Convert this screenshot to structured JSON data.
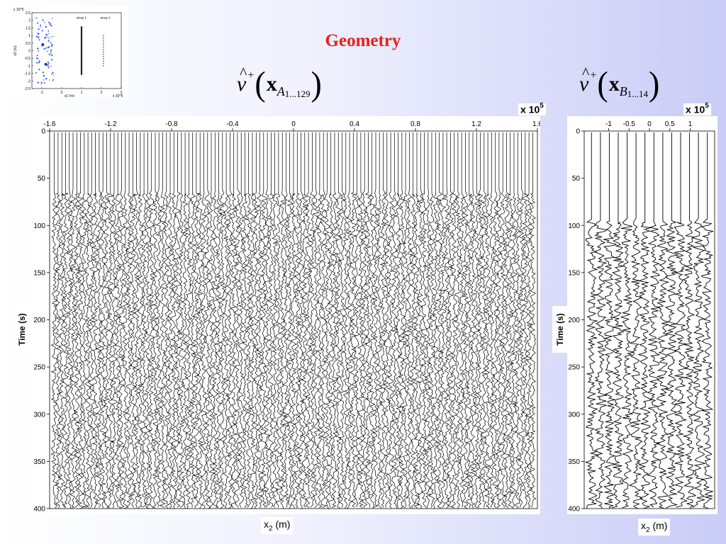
{
  "slide": {
    "title": "Geometry"
  },
  "formulas": {
    "a": {
      "v": "v",
      "hat": "^",
      "sup": "+",
      "x": "x",
      "sub": "A",
      "subsub": "1...129"
    },
    "b": {
      "v": "v",
      "hat": "^",
      "sup": "+",
      "x": "x",
      "sub": "B",
      "subsub": "1...14"
    }
  },
  "labels": {
    "time_a": "Time (s)",
    "time_b": "Time (s)",
    "x2_a": "x",
    "x2_b": "x",
    "x2_sub": "2",
    "x2_unit": " (m)",
    "exp_a_base": "x 10",
    "exp_a_pow": "5",
    "exp_b_base": "x 10",
    "exp_b_pow": "5"
  },
  "colors": {
    "title": "#e8201c",
    "trace": "#000000",
    "background_left": "#ffffff",
    "background_right": "#c9ccf6"
  },
  "chart_data": [
    {
      "type": "scatter",
      "name": "inset-geometry-map",
      "xlabel": "x1 (m)",
      "ylabel": "x2 (m)",
      "xlim": [
        -1.5,
        3
      ],
      "ylim": [
        -2.5,
        2.5
      ],
      "x_ticks": [
        "-1",
        "0",
        "1",
        "2",
        "3"
      ],
      "y_ticks": [
        "2.5",
        "2",
        "1.5",
        "1",
        "0.5",
        "0",
        "-0.5",
        "-1",
        "-1.5",
        "-2",
        "-2.5"
      ],
      "exponent_y": "x 10^5",
      "exponent_x": "x 10^5",
      "annotations": [
        "array 1",
        "array 2"
      ]
    },
    {
      "type": "heatmap",
      "name": "seismogram-array-A",
      "xlabel": "x2 (m)",
      "ylabel": "Time (s)",
      "xlim": [
        -1.6,
        1.6
      ],
      "ylim": [
        400,
        0
      ],
      "x_ticks": [
        "-1.6",
        "-1.2",
        "-0.8",
        "-0.4",
        "0",
        "0.4",
        "0.8",
        "1.2",
        "1.6"
      ],
      "y_ticks": [
        "0",
        "50",
        "100",
        "150",
        "200",
        "250",
        "300",
        "350",
        "400"
      ],
      "exponent": "x 10^5",
      "traces": 129,
      "signal_onset_s": 65
    },
    {
      "type": "heatmap",
      "name": "seismogram-array-B",
      "xlabel": "x2 (m)",
      "ylabel": "Time (s)",
      "xlim": [
        -1.6,
        1.6
      ],
      "ylim": [
        400,
        0
      ],
      "x_ticks": [
        "-1",
        "-0.5",
        "0",
        "0.5",
        "1"
      ],
      "y_ticks": [
        "0",
        "50",
        "100",
        "150",
        "200",
        "250",
        "300",
        "350",
        "400"
      ],
      "exponent": "x 10^5",
      "traces": 14,
      "signal_onset_s": 95
    }
  ]
}
